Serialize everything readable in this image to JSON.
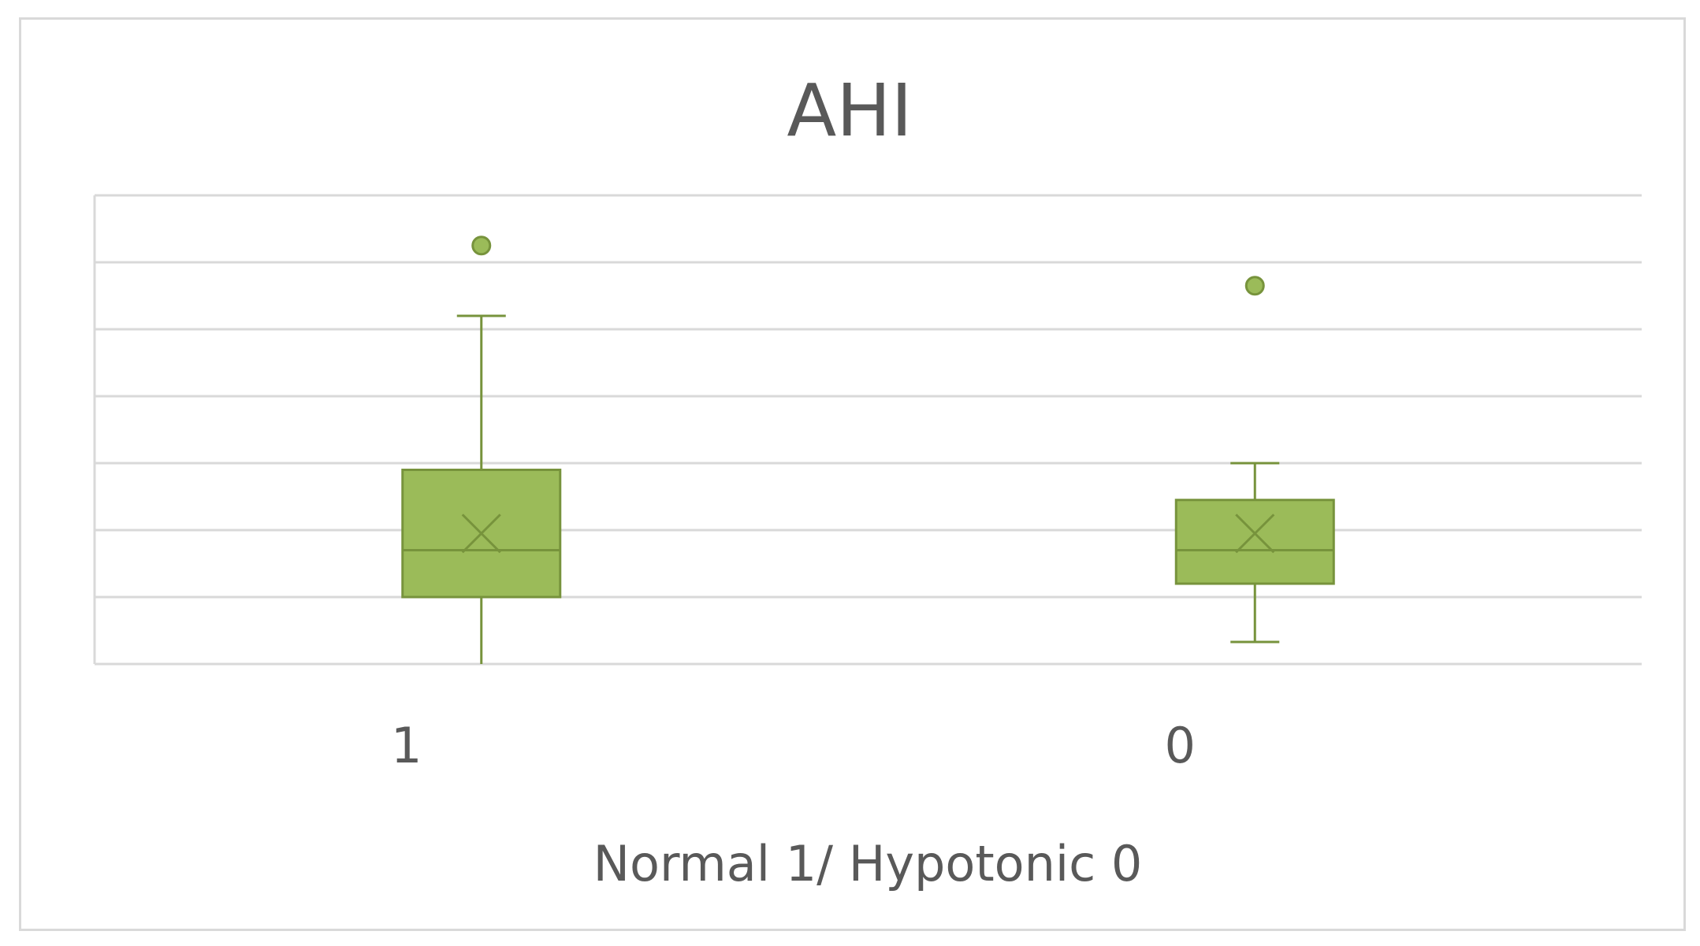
{
  "chart_data": {
    "type": "box",
    "title": "AHI",
    "xlabel": "Normal 1/ Hypotonic 0",
    "ylabel": "",
    "ylim": [
      0,
      7
    ],
    "grid": true,
    "value_axis_labels_shown": false,
    "categories": [
      "1",
      "0"
    ],
    "boxes": [
      {
        "category": "1",
        "min": 0.0,
        "q1": 1.0,
        "median": 1.7,
        "mean": 1.95,
        "q3": 2.9,
        "max": 5.2,
        "outliers": [
          6.25
        ]
      },
      {
        "category": "0",
        "min": 0.33,
        "q1": 1.2,
        "median": 1.7,
        "mean": 1.95,
        "q3": 2.45,
        "max": 3.0,
        "outliers": [
          5.65
        ]
      }
    ],
    "colors": {
      "box_fill": "#9bbb59",
      "box_stroke": "#77933c",
      "gridline": "#d9d9d9",
      "text": "#595959",
      "frame": "#d9d9d9"
    }
  }
}
